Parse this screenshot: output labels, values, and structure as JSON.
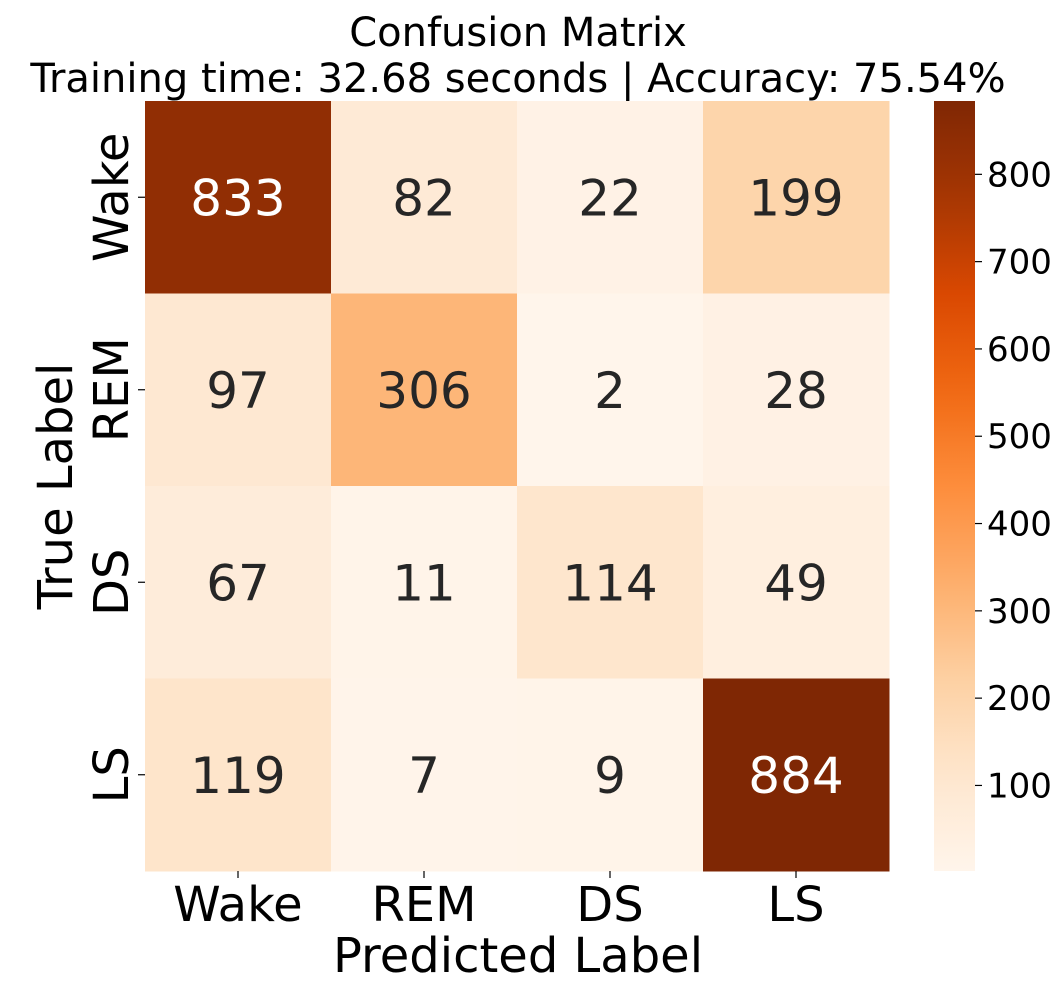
{
  "chart_data": {
    "type": "heatmap",
    "title": "Confusion Matrix",
    "subtitle": "Training time: 32.68 seconds | Accuracy: 75.54%",
    "xlabel": "Predicted Label",
    "ylabel": "True Label",
    "x_categories": [
      "Wake",
      "REM",
      "DS",
      "LS"
    ],
    "y_categories": [
      "Wake",
      "REM",
      "DS",
      "LS"
    ],
    "values": [
      [
        833,
        82,
        22,
        199
      ],
      [
        97,
        306,
        2,
        28
      ],
      [
        67,
        11,
        114,
        49
      ],
      [
        119,
        7,
        9,
        884
      ]
    ],
    "colormap": "Oranges",
    "colorbar": {
      "range": [
        2,
        884
      ],
      "ticks": [
        100,
        200,
        300,
        400,
        500,
        600,
        700,
        800
      ]
    },
    "colors": {
      "low": "#fff5eb",
      "high": "#7f2704",
      "text_dark": "#262626",
      "text_light": "#ffffff"
    }
  }
}
